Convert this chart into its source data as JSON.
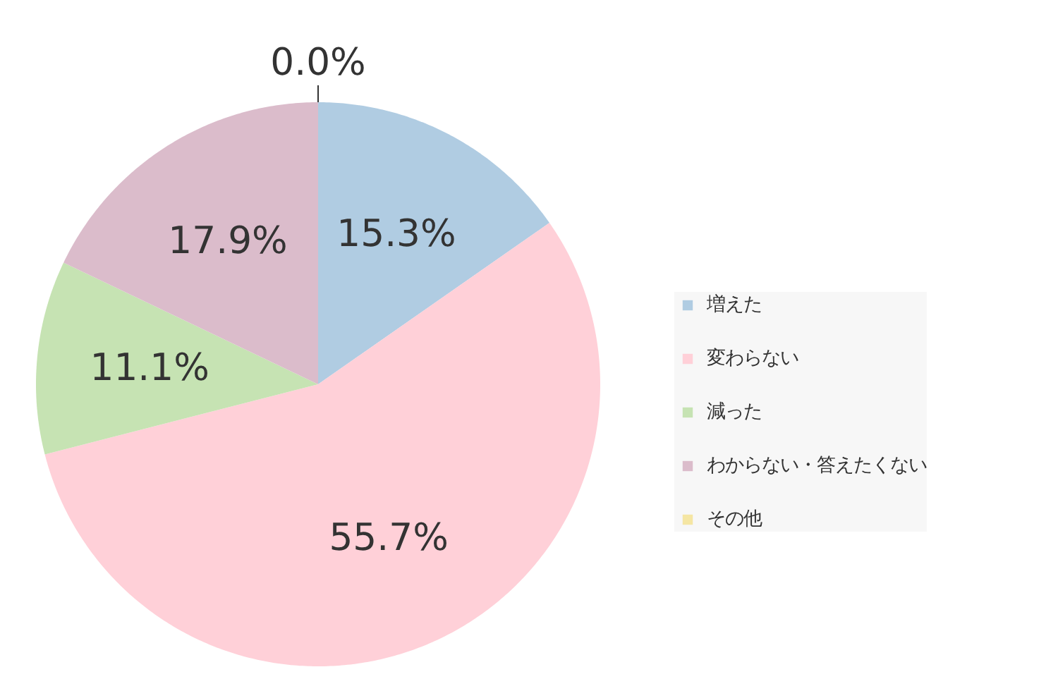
{
  "chart_data": {
    "type": "pie",
    "categories": [
      "増えた",
      "変わらない",
      "減った",
      "わからない・答えたくない",
      "その他"
    ],
    "values": [
      15.3,
      55.7,
      11.1,
      17.9,
      0.0
    ],
    "colors": [
      "#b0cce2",
      "#ffd0d8",
      "#c6e3b3",
      "#dbbccb",
      "#f5e6a3"
    ],
    "value_labels": [
      "15.3%",
      "55.7%",
      "11.1%",
      "17.9%",
      "0.0%"
    ],
    "legend": "right"
  }
}
